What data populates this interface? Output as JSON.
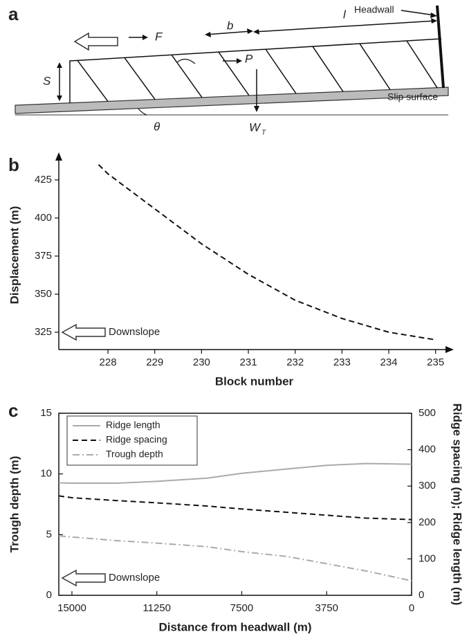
{
  "diagram": {
    "panel": "a",
    "headwall": "Headwall",
    "slip_surface": "Slip surface",
    "F": "F",
    "b": "b",
    "l": "l",
    "P": "P",
    "S": "S",
    "theta": "θ",
    "W": "W",
    "W_sub": "T"
  },
  "chart_data": [
    {
      "panel": "b",
      "type": "line",
      "x_label": "Block number",
      "y_label": "Displacement (m)",
      "annotation": "Downslope",
      "x": [
        227.8,
        228,
        229,
        230,
        231,
        232,
        233,
        234,
        235
      ],
      "series": [
        {
          "color": "#111111",
          "dash": "dashed",
          "values": [
            435,
            429,
            406,
            383,
            363,
            346,
            334,
            325,
            320
          ]
        }
      ],
      "xlim": [
        226.95,
        235.3
      ],
      "ylim": [
        313.6,
        437.7
      ],
      "xticks": [
        228,
        229,
        230,
        231,
        232,
        233,
        234,
        235
      ],
      "yticks": [
        325,
        350,
        375,
        400,
        425
      ]
    },
    {
      "panel": "c",
      "type": "line",
      "x_label": "Distance from headwall (m)",
      "y_label": "Trough depth (m)",
      "y2_label": "Ridge spacing (m); Ridge length (m)",
      "annotation": "Downslope",
      "x": [
        15580,
        15000,
        13000,
        11250,
        9000,
        7500,
        5500,
        3750,
        2000,
        0
      ],
      "series": [
        {
          "name": "Ridge length",
          "color": "#aaaaaa",
          "dash": "solid",
          "axis": "y2",
          "values": [
            309,
            308,
            308,
            313,
            322,
            335,
            347,
            357,
            362,
            360
          ]
        },
        {
          "name": "Ridge spacing",
          "color": "#111111",
          "dash": "dashed",
          "axis": "y2",
          "values": [
            273,
            268,
            260,
            254,
            245,
            237,
            228,
            220,
            212,
            208
          ]
        },
        {
          "name": "Trough depth",
          "color": "#aaaaaa",
          "dash": "dashdot",
          "values": [
            4.9,
            4.8,
            4.5,
            4.3,
            4.0,
            3.6,
            3.2,
            2.6,
            2.0,
            1.2
          ]
        }
      ],
      "xlim": [
        15580,
        0
      ],
      "ylim": [
        0,
        15
      ],
      "y2lim": [
        0,
        500
      ],
      "xticks": [
        15000,
        11250,
        7500,
        3750,
        0
      ],
      "yticks": [
        0,
        5,
        10,
        15
      ],
      "y2ticks": [
        0,
        100,
        200,
        300,
        400,
        500
      ],
      "legend": "upper left"
    }
  ]
}
